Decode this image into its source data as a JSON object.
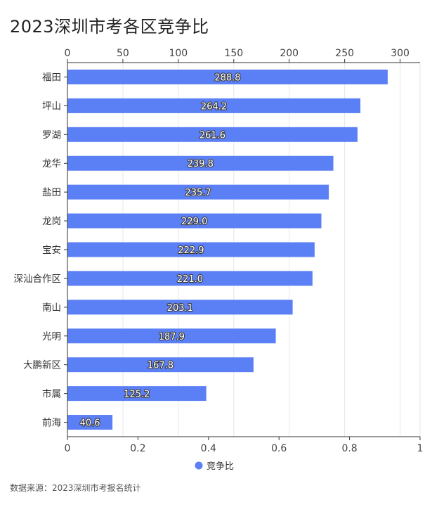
{
  "title": "2023深圳市考各区竞争比",
  "source": "数据来源：2023深圳市考报名统计",
  "colors": {
    "bar": "#5b7ff5",
    "grid": "#e6e6e6",
    "axis": "#333333"
  },
  "chart_data": {
    "type": "bar",
    "orientation": "horizontal",
    "categories": [
      "福田",
      "坪山",
      "罗湖",
      "龙华",
      "盐田",
      "龙岗",
      "宝安",
      "深汕合作区",
      "南山",
      "光明",
      "大鹏新区",
      "市属",
      "前海"
    ],
    "series": [
      {
        "name": "竞争比",
        "values": [
          288.8,
          264.2,
          261.6,
          239.8,
          235.7,
          229.0,
          222.9,
          221.0,
          203.1,
          187.9,
          167.8,
          125.2,
          40.6
        ]
      }
    ],
    "value_labels": [
      "288.8",
      "264.2",
      "261.6",
      "239.8",
      "235.7",
      "229.0",
      "222.9",
      "221.0",
      "203.1",
      "187.9",
      "167.8",
      "125.2",
      "40.6"
    ],
    "top_axis": {
      "ticks": [
        "0",
        "50",
        "100",
        "150",
        "200",
        "250",
        "300"
      ],
      "range": [
        0,
        318
      ]
    },
    "bottom_axis": {
      "ticks": [
        "0",
        "0.2",
        "0.4",
        "0.6",
        "0.8",
        "1"
      ],
      "range": [
        0,
        1
      ]
    },
    "legend": {
      "position": "bottom-center"
    },
    "grid": true
  }
}
